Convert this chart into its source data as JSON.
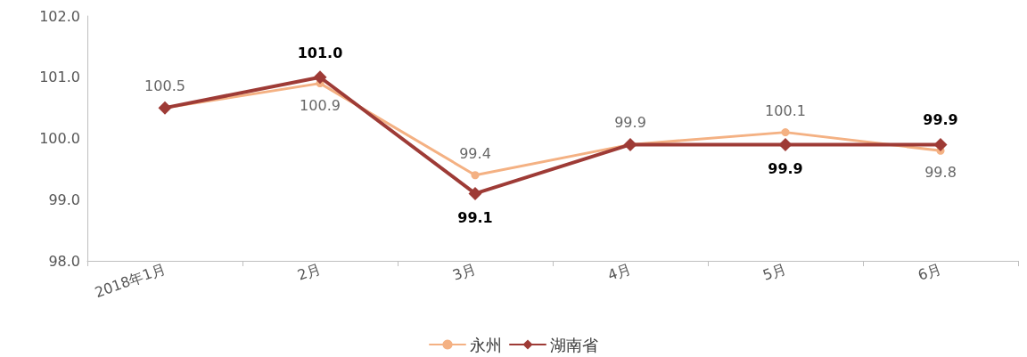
{
  "chart_data": {
    "type": "line",
    "categories": [
      "2018年1月",
      "2月",
      "3月",
      "4月",
      "5月",
      "6月"
    ],
    "series": [
      {
        "name": "永州",
        "color": "#f4b183",
        "marker": "circle",
        "values": [
          100.5,
          100.9,
          99.4,
          99.9,
          100.1,
          99.8
        ],
        "value_labels": [
          "100.5",
          "100.9",
          "99.4",
          "99.9",
          "100.1",
          "99.8"
        ]
      },
      {
        "name": "湖南省",
        "color": "#9e3b36",
        "marker": "diamond",
        "values": [
          100.5,
          101.0,
          99.1,
          99.9,
          99.9,
          99.9
        ],
        "value_labels": [
          null,
          "101.0",
          "99.1",
          null,
          "99.9",
          "99.9"
        ]
      }
    ],
    "ylim": [
      98,
      102
    ],
    "yticks": [
      {
        "value": 98,
        "label": "98.0"
      },
      {
        "value": 99,
        "label": "99.0"
      },
      {
        "value": 100,
        "label": "100.0"
      },
      {
        "value": 101,
        "label": "101.0"
      },
      {
        "value": 102,
        "label": "102.0"
      }
    ],
    "grid": false,
    "legend": "bottom",
    "line_style": "solid"
  }
}
